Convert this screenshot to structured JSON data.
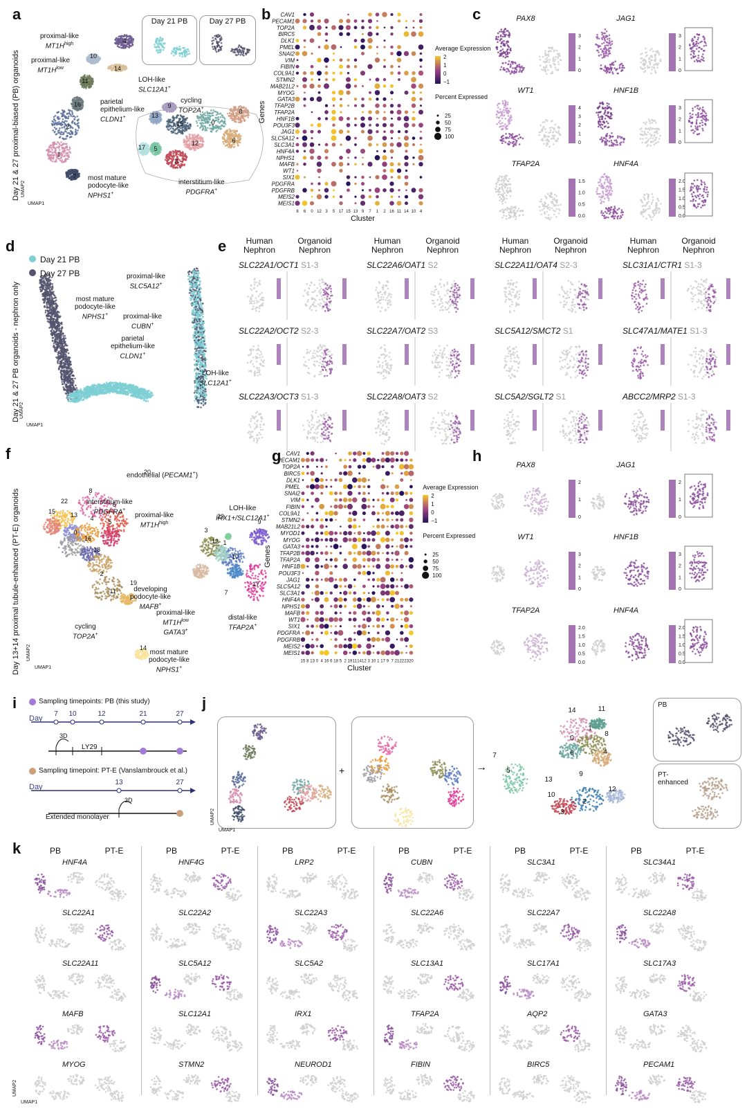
{
  "panels": {
    "a": {
      "letter": "a",
      "vertical_title": "Day 21 & 27 proximal-biased (PB) organoids",
      "inset1": "Day 21 PB",
      "inset2": "Day 27 PB",
      "axis_x": "UMAP1",
      "axis_y": "UMAP2",
      "labels": [
        {
          "t1": "proximal-like",
          "g": "MT1H",
          "sup": "high"
        },
        {
          "t1": "proximal-like",
          "g": "MT1H",
          "sup": "low"
        },
        {
          "t1": "LOH-like",
          "g": "SLC12A1",
          "sup": "+"
        },
        {
          "t1": "parietal",
          "t2": "epithelium-like",
          "g": "CLDN1",
          "sup": "+"
        },
        {
          "t1": "cycling",
          "g": "TOP2A",
          "sup": "+"
        },
        {
          "t1": "most mature",
          "t2": "podocyte-like",
          "g": "NPHS1",
          "sup": "+"
        },
        {
          "t1": "interstitium-like",
          "g": "PDGFRA",
          "sup": "+"
        }
      ],
      "cluster_numbers": [
        "4",
        "10",
        "14",
        "11",
        "16",
        "2",
        "1",
        "7",
        "9",
        "13",
        "15",
        "0",
        "8",
        "17",
        "5",
        "12",
        "6",
        "3"
      ]
    },
    "b": {
      "letter": "b",
      "ylabel": "Genes",
      "xlabel": "Cluster",
      "genes": [
        "CAV1",
        "PECAM1",
        "TOP2A",
        "BIRC5",
        "DLK1",
        "PMEL",
        "SNAI2",
        "VIM",
        "FIBIN",
        "COL9A1",
        "STMN2",
        "MAB21L2",
        "MYOG",
        "GATA3",
        "TFAP2B",
        "TFAP2A",
        "HNF1B",
        "POU3F3",
        "JAG1",
        "SLC5A12",
        "SLC3A1",
        "HNF4A",
        "NPHS1",
        "MAFB",
        "WT1",
        "SIX1",
        "PDGFRA",
        "PDGFRB",
        "MEIS2",
        "MEIS1"
      ],
      "clusters": [
        "8",
        "6",
        "0",
        "12",
        "3",
        "5",
        "17",
        "15",
        "13",
        "9",
        "7",
        "1",
        "2",
        "16",
        "11",
        "14",
        "10",
        "4"
      ],
      "legend_expr_title": "Average Expression",
      "legend_expr_ticks": [
        "2",
        "1",
        "0",
        "−1"
      ],
      "legend_pct_title": "Percent Expressed",
      "legend_pct": [
        "25",
        "50",
        "75",
        "100"
      ]
    },
    "c": {
      "letter": "c",
      "genes": [
        "PAX8",
        "JAG1",
        "WT1",
        "HNF1B",
        "TFAP2A",
        "HNF4A"
      ],
      "scales": [
        [
          "3",
          "2",
          "1",
          "0"
        ],
        [
          "3",
          "2",
          "1",
          "0"
        ],
        [
          "4",
          "3",
          "2",
          "1",
          "0"
        ],
        [
          "3",
          "2",
          "1",
          "0"
        ],
        [
          "1.5",
          "1.0",
          "0.5",
          "0.0"
        ],
        [
          "2.0",
          "1.5",
          "1.0",
          "0.5",
          "0.0"
        ]
      ]
    },
    "d": {
      "letter": "d",
      "vertical_title": "Day 21 & 27 PB organoids - nephron only",
      "legend": [
        "Day 21 PB",
        "Day 27 PB"
      ],
      "colors": [
        "#7dcfd3",
        "#55546f"
      ],
      "labels": [
        {
          "t1": "proximal-like",
          "g": "SLC5A12",
          "sup": "+"
        },
        {
          "t1": "most mature",
          "t2": "podocyte-like",
          "g": "NPHS1",
          "sup": "+"
        },
        {
          "t1": "proximal-like",
          "g": "CUBN",
          "sup": "+"
        },
        {
          "t1": "parietal",
          "t2": "epithelium-like",
          "g": "CLDN1",
          "sup": "+"
        },
        {
          "t1": "LOH-like",
          "g": "SLC12A1",
          "sup": "+"
        }
      ],
      "axis_x": "UMAP1",
      "axis_y": "UMAP2"
    },
    "e": {
      "letter": "e",
      "header_human": "Human Nephron",
      "header_organoid": "Organoid Nephron",
      "genes": [
        {
          "g": "SLC22A1/OCT1",
          "seg": "S1-3"
        },
        {
          "g": "SLC22A6/OAT1",
          "seg": "S2"
        },
        {
          "g": "SLC22A11/OAT4",
          "seg": "S2-3"
        },
        {
          "g": "SLC31A1/CTR1",
          "seg": "S1-3"
        },
        {
          "g": "SLC22A2/OCT2",
          "seg": "S2-3"
        },
        {
          "g": "SLC22A7/OAT2",
          "seg": "S3"
        },
        {
          "g": "SLC5A12/SMCT2",
          "seg": "S1"
        },
        {
          "g": "SLC47A1/MATE1",
          "seg": "S1-3"
        },
        {
          "g": "SLC22A3/OCT3",
          "seg": "S1-3"
        },
        {
          "g": "SLC22A8/OAT3",
          "seg": "S2"
        },
        {
          "g": "SLC5A2/SGLT2",
          "seg": "S1"
        },
        {
          "g": "ABCC2/MRP2",
          "seg": "S1-3"
        }
      ]
    },
    "f": {
      "letter": "f",
      "vertical_title": "Day 13+14 proximal tubule-enhanced (PT-E) organoids",
      "labels": [
        {
          "t1": "endothelial",
          "g": "PECAM1",
          "sup": "+"
        },
        {
          "t1": "interstitium-like",
          "g": "PDGFRA",
          "sup": "+"
        },
        {
          "t1": "proximal-like",
          "g": "MT1H",
          "sup": "high"
        },
        {
          "t1": "LOH-like",
          "g": "IRX1+/SLC12A1",
          "sup": "+"
        },
        {
          "t1": "developing",
          "t2": "podocyte-like",
          "g": "MAFB",
          "sup": "+"
        },
        {
          "t1": "proximal-like",
          "g": "MT1H",
          "sup": "low",
          "g2": "GATA3",
          "sup2": "+"
        },
        {
          "t1": "distal-like",
          "g": "TFAP2A",
          "sup": "+"
        },
        {
          "t1": "cycling",
          "g": "TOP2A",
          "sup": "+"
        },
        {
          "t1": "most mature",
          "t2": "podocyte-like",
          "g": "NPHS1",
          "sup": "+"
        }
      ],
      "cluster_numbers": [
        "20",
        "8",
        "22",
        "15",
        "13",
        "6",
        "4",
        "5",
        "0",
        "16",
        "18",
        "2",
        "19",
        "11",
        "14",
        "23",
        "3",
        "9",
        "1",
        "12",
        "10",
        "17",
        "7",
        "21"
      ],
      "axis_x": "UMAP1",
      "axis_y": "UMAP2"
    },
    "g": {
      "letter": "g",
      "ylabel": "Genes",
      "xlabel": "Cluster",
      "genes": [
        "CAV1",
        "PECAM1",
        "TOP2A",
        "BIRC5",
        "DLK1",
        "PMEL",
        "SNAI2",
        "VIM",
        "FIBIN",
        "COL9A1",
        "STMN2",
        "MAB21L2",
        "MYOD1",
        "MYOG",
        "GATA3",
        "TFAP2B",
        "TFAP2A",
        "HNF1B",
        "POU3F3",
        "JAG1",
        "SLC5A12",
        "SLC3A1",
        "HNF4A",
        "NPHS1",
        "MAFB",
        "WT1",
        "SIX1",
        "PDGFRA",
        "PDGFRB",
        "MEIS2",
        "MEIS1"
      ],
      "clusters": [
        "15",
        "8",
        "13",
        "0",
        "4",
        "16",
        "6",
        "18",
        "5",
        "2",
        "19",
        "11",
        "14",
        "12",
        "3",
        "10",
        "1",
        "17",
        "9",
        "7",
        "21",
        "22",
        "23",
        "20"
      ],
      "legend_expr_title": "Average Expression",
      "legend_expr_ticks": [
        "2",
        "1",
        "0",
        "−1"
      ],
      "legend_pct_title": "Percent Expressed",
      "legend_pct": [
        "25",
        "50",
        "75",
        "100"
      ]
    },
    "h": {
      "letter": "h",
      "genes": [
        "PAX8",
        "JAG1",
        "WT1",
        "HNF1B",
        "TFAP2A",
        "HNF4A"
      ],
      "scales": [
        [
          "2",
          "1",
          "0"
        ],
        [
          "2",
          "1",
          "0"
        ],
        [
          "3",
          "2",
          "1",
          "0"
        ],
        [
          "3",
          "2",
          "1",
          "0"
        ],
        [
          "2.0",
          "1.5",
          "1.0",
          "0.5",
          "0.0"
        ],
        [
          "2.0",
          "1.5",
          "1.0",
          "0.5",
          "0.0"
        ]
      ]
    },
    "i": {
      "letter": "i",
      "pb_legend": "Sampling timepoints: PB (this study)",
      "pb_day": "Day",
      "pb_ticks": [
        "7",
        "10",
        "12",
        "21",
        "27"
      ],
      "pb_3d": "3D",
      "pb_ly": "LY29",
      "pte_legend": "Sampling timepoint: PT-E (Vanslambrouck et al.)",
      "pte_day": "Day",
      "pte_ticks": [
        "13",
        "27"
      ],
      "pte_3d": "3D",
      "pte_mono": "Extended monolayer"
    },
    "j": {
      "letter": "j",
      "plus": "+",
      "arrow": "→",
      "cluster_numbers": [
        "14",
        "11",
        "1",
        "0",
        "8",
        "6",
        "4",
        "9",
        "7",
        "5",
        "13",
        "10",
        "2",
        "12",
        "3"
      ],
      "inset_pb": "PB",
      "inset_pte": "PT-enhanced",
      "axis_x": "UMAP1",
      "axis_y": "UMAP2"
    },
    "k": {
      "letter": "k",
      "col_pb": "PB",
      "col_pte": "PT-E",
      "genes": [
        [
          "HNF4A",
          "HNF4G",
          "LRP2",
          "CUBN",
          "SLC3A1",
          "SLC34A1"
        ],
        [
          "SLC22A1",
          "SLC22A2",
          "SLC22A3",
          "SLC22A6",
          "SLC22A7",
          "SLC22A8"
        ],
        [
          "SLC22A11",
          "SLC5A12",
          "SLC5A2",
          "SLC13A1",
          "SLC17A1",
          "SLC17A3"
        ],
        [
          "MAFB",
          "SLC12A1",
          "IRX1",
          "TFAP2A",
          "AQP2",
          "GATA3"
        ],
        [
          "MYOG",
          "STMN2",
          "NEUROD1",
          "FIBIN",
          "BIRC5",
          "PECAM1"
        ]
      ],
      "axis_x": "UMAP1",
      "axis_y": "UMAP2"
    }
  }
}
